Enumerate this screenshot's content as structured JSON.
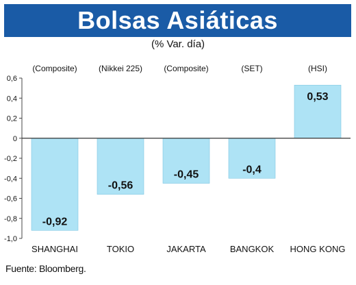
{
  "header": {
    "title": "Bolsas Asiáticas",
    "subtitle": "(% Var. día)"
  },
  "source": "Fuente: Bloomberg.",
  "colors": {
    "title_bg": "#1a5ba6",
    "bar": "#aee3f5",
    "bar_stroke": "#7fc7e2",
    "text": "#111111"
  },
  "chart_data": {
    "type": "bar",
    "title": "Bolsas Asiáticas",
    "subtitle": "(% Var. día)",
    "categories": [
      "SHANGHAI",
      "TOKIO",
      "JAKARTA",
      "BANGKOK",
      "HONG KONG"
    ],
    "index_labels": [
      "(Composite)",
      "(Nikkei 225)",
      "(Composite)",
      "(SET)",
      "(HSI)"
    ],
    "values": [
      -0.92,
      -0.56,
      -0.45,
      -0.4,
      0.53
    ],
    "value_labels": [
      "-0,92",
      "-0,56",
      "-0,45",
      "-0,4",
      "0,53"
    ],
    "ylim": [
      -1.0,
      0.6
    ],
    "yticks": [
      -1.0,
      -0.8,
      -0.6,
      -0.4,
      -0.2,
      0,
      0.2,
      0.4,
      0.6
    ],
    "ytick_labels": [
      "-1,0",
      "-0,8",
      "-0,6",
      "-0,4",
      "-0,2",
      "0",
      "0,2",
      "0,4",
      "0,6"
    ],
    "xlabel": "",
    "ylabel": "",
    "grid": false,
    "legend": "none"
  }
}
